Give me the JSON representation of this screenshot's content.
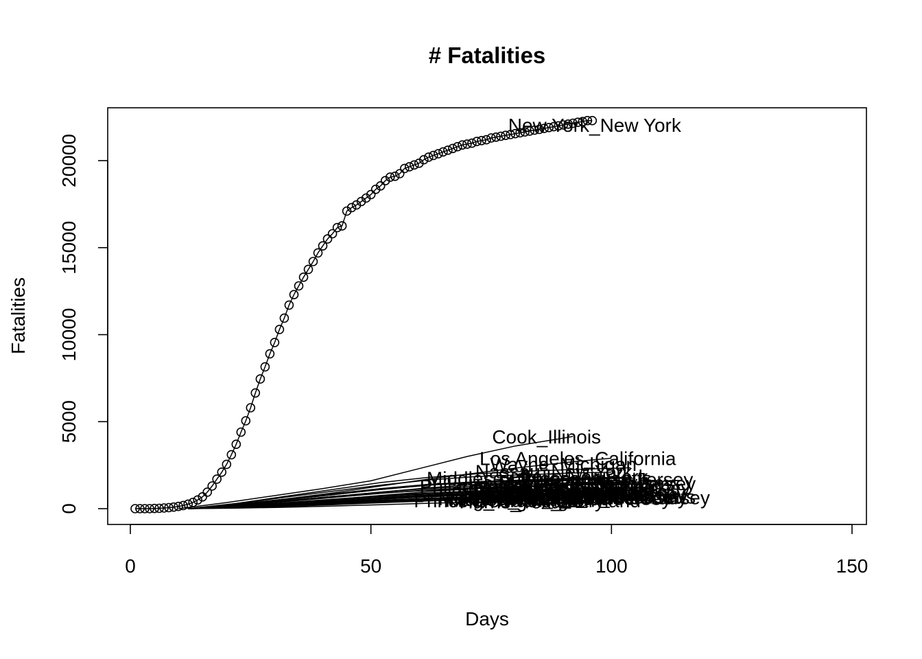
{
  "chart_data": {
    "type": "line",
    "title": "# Fatalities",
    "xlabel": "Days",
    "ylabel": "Fatalities",
    "xlim": [
      0,
      150
    ],
    "ylim": [
      -800,
      23000
    ],
    "x_ticks": [
      0,
      50,
      100,
      150
    ],
    "y_ticks": [
      0,
      5000,
      10000,
      15000,
      20000
    ],
    "grid": false,
    "legend": "none",
    "series": [
      {
        "name": "New York_New York",
        "points": true,
        "x": [
          1,
          2,
          3,
          4,
          5,
          6,
          7,
          8,
          9,
          10,
          11,
          12,
          13,
          14,
          15,
          16,
          17,
          18,
          19,
          20,
          21,
          22,
          23,
          24,
          25,
          26,
          27,
          28,
          29,
          30,
          31,
          32,
          33,
          34,
          35,
          36,
          37,
          38,
          39,
          40,
          41,
          42,
          43,
          44,
          45,
          46,
          47,
          48,
          49,
          50,
          51,
          52,
          53,
          54,
          55,
          56,
          57,
          58,
          59,
          60,
          61,
          62,
          63,
          64,
          65,
          66,
          67,
          68,
          69,
          70,
          71,
          72,
          73,
          74,
          75,
          76,
          77,
          78,
          79,
          80,
          81,
          82,
          83,
          84,
          85,
          86,
          87,
          88,
          89,
          90,
          91,
          92,
          93,
          94,
          95,
          96
        ],
        "y": [
          0,
          0,
          0,
          0,
          10,
          20,
          40,
          60,
          90,
          130,
          180,
          260,
          360,
          500,
          680,
          950,
          1300,
          1700,
          2100,
          2550,
          3100,
          3700,
          4400,
          5050,
          5800,
          6650,
          7450,
          8150,
          8900,
          9550,
          10300,
          10950,
          11700,
          12300,
          12800,
          13300,
          13750,
          14200,
          14700,
          15100,
          15500,
          15800,
          16150,
          16250,
          17100,
          17300,
          17450,
          17650,
          17850,
          18050,
          18350,
          18550,
          18850,
          19050,
          19100,
          19250,
          19550,
          19650,
          19750,
          19850,
          20050,
          20200,
          20300,
          20400,
          20500,
          20600,
          20700,
          20800,
          20900,
          20950,
          21000,
          21100,
          21150,
          21200,
          21300,
          21350,
          21400,
          21450,
          21500,
          21550,
          21600,
          21650,
          21700,
          21750,
          21800,
          21850,
          21900,
          21950,
          22000,
          22050,
          22100,
          22150,
          22200,
          22250,
          22300,
          22300
        ]
      },
      {
        "name": "Cook_Illinois",
        "x": [
          10,
          20,
          30,
          40,
          50,
          60,
          70,
          80,
          90,
          92
        ],
        "y": [
          0,
          350,
          750,
          1150,
          1600,
          2300,
          3000,
          3600,
          4050,
          4150
        ]
      },
      {
        "name": "Los Angeles_California",
        "x": [
          12,
          22,
          32,
          42,
          52,
          62,
          72,
          82,
          92,
          100
        ],
        "y": [
          0,
          250,
          550,
          900,
          1300,
          1700,
          2050,
          2400,
          2700,
          2900
        ]
      },
      {
        "name": "Wayne_Michigan",
        "x": [
          12,
          22,
          32,
          42,
          52,
          62,
          72,
          82,
          92,
          104
        ],
        "y": [
          0,
          300,
          700,
          1100,
          1500,
          1800,
          2000,
          2150,
          2250,
          2350
        ]
      },
      {
        "name": "Nassau_New York",
        "x": [
          12,
          22,
          32,
          42,
          52,
          62,
          72,
          82,
          92,
          100
        ],
        "y": [
          0,
          280,
          650,
          1000,
          1350,
          1650,
          1850,
          1950,
          2050,
          2100
        ]
      },
      {
        "name": "Middlesex_New Jersey",
        "x": [
          12,
          22,
          32,
          42,
          52,
          62,
          72,
          82,
          92,
          110
        ],
        "y": [
          0,
          200,
          450,
          700,
          950,
          1150,
          1300,
          1400,
          1500,
          1550
        ]
      },
      {
        "name": "Suffolk_New York",
        "x": [
          12,
          22,
          32,
          42,
          52,
          62,
          72,
          82,
          92,
          105
        ],
        "y": [
          0,
          220,
          500,
          800,
          1100,
          1350,
          1500,
          1600,
          1700,
          1750
        ]
      },
      {
        "name": "Bergen_New Jersey",
        "x": [
          12,
          22,
          32,
          42,
          52,
          62,
          72,
          82,
          92,
          100
        ],
        "y": [
          0,
          250,
          550,
          850,
          1150,
          1400,
          1550,
          1650,
          1750,
          1800
        ]
      },
      {
        "name": "Middlesex_Massachusetts",
        "x": [
          12,
          22,
          32,
          42,
          52,
          62,
          72,
          82,
          92,
          98
        ],
        "y": [
          0,
          180,
          420,
          680,
          950,
          1200,
          1400,
          1550,
          1650,
          1700
        ]
      },
      {
        "name": "Essex_New Jersey",
        "x": [
          12,
          22,
          32,
          42,
          52,
          62,
          72,
          82,
          92,
          104
        ],
        "y": [
          0,
          220,
          500,
          800,
          1100,
          1350,
          1550,
          1650,
          1750,
          1800
        ]
      },
      {
        "name": "Hudson_New Jersey",
        "x": [
          12,
          22,
          32,
          42,
          52,
          62,
          72,
          82,
          92,
          106
        ],
        "y": [
          0,
          180,
          400,
          640,
          880,
          1080,
          1220,
          1300,
          1360,
          1400
        ]
      },
      {
        "name": "Union_New Jersey",
        "x": [
          12,
          22,
          32,
          42,
          52,
          62,
          72,
          82,
          92,
          108
        ],
        "y": [
          0,
          140,
          320,
          520,
          720,
          880,
          1000,
          1080,
          1140,
          1180
        ]
      },
      {
        "name": "Passaic_New Jersey",
        "x": [
          12,
          22,
          32,
          42,
          52,
          62,
          72,
          82,
          92,
          102
        ],
        "y": [
          0,
          150,
          340,
          540,
          740,
          900,
          1020,
          1100,
          1150,
          1180
        ]
      },
      {
        "name": "Philadelphia_Pennsylvania",
        "x": [
          12,
          22,
          32,
          42,
          52,
          62,
          72,
          82,
          92,
          104
        ],
        "y": [
          0,
          120,
          300,
          520,
          760,
          980,
          1150,
          1300,
          1420,
          1500
        ]
      },
      {
        "name": "Westchester_New York",
        "x": [
          12,
          22,
          32,
          42,
          52,
          62,
          72,
          82,
          92,
          100
        ],
        "y": [
          0,
          200,
          450,
          700,
          900,
          1050,
          1150,
          1250,
          1350,
          1400
        ]
      },
      {
        "name": "Fairfield_Connecticut",
        "x": [
          12,
          22,
          32,
          42,
          52,
          62,
          72,
          82,
          92,
          106
        ],
        "y": [
          0,
          140,
          330,
          530,
          720,
          860,
          960,
          1020,
          1060,
          1080
        ]
      },
      {
        "name": "Hartford_Connecticut",
        "x": [
          12,
          22,
          32,
          42,
          52,
          62,
          72,
          82,
          92,
          108
        ],
        "y": [
          0,
          110,
          260,
          430,
          600,
          750,
          860,
          940,
          990,
          1020
        ]
      },
      {
        "name": "Oakland_Michigan",
        "x": [
          12,
          22,
          32,
          42,
          52,
          62,
          72,
          82,
          92,
          104
        ],
        "y": [
          0,
          120,
          290,
          480,
          660,
          800,
          900,
          960,
          1000,
          1030
        ]
      },
      {
        "name": "Suffolk_Massachusetts",
        "x": [
          12,
          22,
          32,
          42,
          52,
          62,
          72,
          82,
          92,
          100
        ],
        "y": [
          0,
          100,
          250,
          420,
          600,
          760,
          880,
          960,
          1020,
          1060
        ]
      },
      {
        "name": "Essex_Massachusetts",
        "x": [
          12,
          22,
          32,
          42,
          52,
          62,
          72,
          82,
          92,
          106
        ],
        "y": [
          0,
          90,
          220,
          380,
          540,
          680,
          790,
          860,
          910,
          940
        ]
      },
      {
        "name": "Macomb_Michigan",
        "x": [
          12,
          22,
          32,
          42,
          52,
          62,
          72,
          82,
          92,
          102
        ],
        "y": [
          0,
          110,
          260,
          430,
          590,
          720,
          800,
          860,
          900,
          920
        ]
      },
      {
        "name": "Worcester_Massachusetts",
        "x": [
          12,
          22,
          32,
          42,
          52,
          62,
          72,
          82,
          92,
          110
        ],
        "y": [
          0,
          70,
          180,
          320,
          470,
          600,
          700,
          780,
          840,
          870
        ]
      },
      {
        "name": "Monmouth_New Jersey",
        "x": [
          12,
          22,
          32,
          42,
          52,
          62,
          72,
          82,
          92,
          112
        ],
        "y": [
          0,
          90,
          210,
          350,
          480,
          590,
          670,
          720,
          750,
          770
        ]
      },
      {
        "name": "Ocean_New Jersey",
        "x": [
          12,
          22,
          32,
          42,
          52,
          62,
          72,
          82,
          92,
          108
        ],
        "y": [
          0,
          80,
          190,
          320,
          450,
          560,
          640,
          700,
          740,
          760
        ]
      },
      {
        "name": "Miami-Dade_Florida",
        "x": [
          12,
          22,
          32,
          42,
          52,
          62,
          72,
          82,
          92,
          100
        ],
        "y": [
          0,
          60,
          150,
          260,
          380,
          500,
          600,
          680,
          740,
          780
        ]
      },
      {
        "name": "King_Washington",
        "x": [
          12,
          22,
          32,
          42,
          52,
          62,
          72,
          82,
          92,
          104
        ],
        "y": [
          0,
          100,
          220,
          340,
          450,
          520,
          570,
          600,
          620,
          630
        ]
      },
      {
        "name": "New Haven_Connecticut",
        "x": [
          12,
          22,
          32,
          42,
          52,
          62,
          72,
          82,
          92,
          106
        ],
        "y": [
          0,
          80,
          200,
          340,
          480,
          600,
          690,
          750,
          790,
          810
        ]
      },
      {
        "name": "Prince George's_Maryland",
        "x": [
          12,
          22,
          32,
          42,
          52,
          62,
          72,
          82,
          92,
          98
        ],
        "y": [
          0,
          60,
          160,
          290,
          420,
          540,
          630,
          690,
          730,
          750
        ]
      },
      {
        "name": "Marion_Indiana",
        "x": [
          12,
          22,
          32,
          42,
          52,
          62,
          72,
          82,
          92,
          96
        ],
        "y": [
          0,
          50,
          130,
          230,
          340,
          440,
          520,
          580,
          620,
          640
        ]
      },
      {
        "name": "Harris_Texas",
        "x": [
          12,
          22,
          32,
          42,
          52,
          62,
          72,
          82,
          92,
          94
        ],
        "y": [
          0,
          30,
          80,
          150,
          230,
          310,
          380,
          440,
          490,
          510
        ]
      }
    ],
    "labels": [
      {
        "text": "New York_New York",
        "x": 96.5,
        "y": 22050
      },
      {
        "text": "Cook_Illinois",
        "x": 86.5,
        "y": 4150
      },
      {
        "text": "Los Angeles_California",
        "x": 93.0,
        "y": 2900
      },
      {
        "text": "Wayne_Michigan",
        "x": 90.0,
        "y": 2570
      },
      {
        "text": "Nassau_New York",
        "x": 88.0,
        "y": 2150
      },
      {
        "text": "Middlesex_New Jersey",
        "x": 97.0,
        "y": 1450
      },
      {
        "text": "Suffolk_New York",
        "x": 92.0,
        "y": 1850
      },
      {
        "text": "Bergen_New Jersey",
        "x": 99.0,
        "y": 1700
      },
      {
        "text": "Middlesex_Massachusetts",
        "x": 85.0,
        "y": 1750
      },
      {
        "text": "Essex_New Jersey",
        "x": 96.0,
        "y": 1500
      },
      {
        "text": "Hudson_New Jersey",
        "x": 98.0,
        "y": 1200
      },
      {
        "text": "Union_New Jersey",
        "x": 99.0,
        "y": 650
      },
      {
        "text": "Passaic_New Jersey",
        "x": 97.0,
        "y": 900
      },
      {
        "text": "Philadelphia_Pennsylvania",
        "x": 84.0,
        "y": 1300
      },
      {
        "text": "Westchester_New York",
        "x": 91.0,
        "y": 1300
      },
      {
        "text": "Fairfield_Connecticut",
        "x": 89.0,
        "y": 1000
      },
      {
        "text": "Hartford_Connecticut",
        "x": 90.0,
        "y": 850
      },
      {
        "text": "Oakland_Michigan",
        "x": 91.0,
        "y": 950
      },
      {
        "text": "Suffolk_Massachusetts",
        "x": 88.0,
        "y": 1100
      },
      {
        "text": "Essex_Massachusetts",
        "x": 94.0,
        "y": 800
      },
      {
        "text": "Macomb_Michigan",
        "x": 86.0,
        "y": 850
      },
      {
        "text": "Worcester_Massachusetts",
        "x": 94.0,
        "y": 700
      },
      {
        "text": "Monmouth_New Jersey",
        "x": 99.5,
        "y": 650
      },
      {
        "text": "Ocean_New Jersey",
        "x": 95.0,
        "y": 620
      },
      {
        "text": "Miami-Dade_Florida",
        "x": 82.0,
        "y": 600
      },
      {
        "text": "King_Washington",
        "x": 81.0,
        "y": 500
      },
      {
        "text": "New Haven_Connecticut",
        "x": 92.0,
        "y": 700
      },
      {
        "text": "Prince George's_Maryland",
        "x": 82.5,
        "y": 480
      },
      {
        "text": "Marion_Indiana",
        "x": 80.0,
        "y": 560
      },
      {
        "text": "Harris_Texas",
        "x": 80.0,
        "y": 420
      }
    ]
  }
}
